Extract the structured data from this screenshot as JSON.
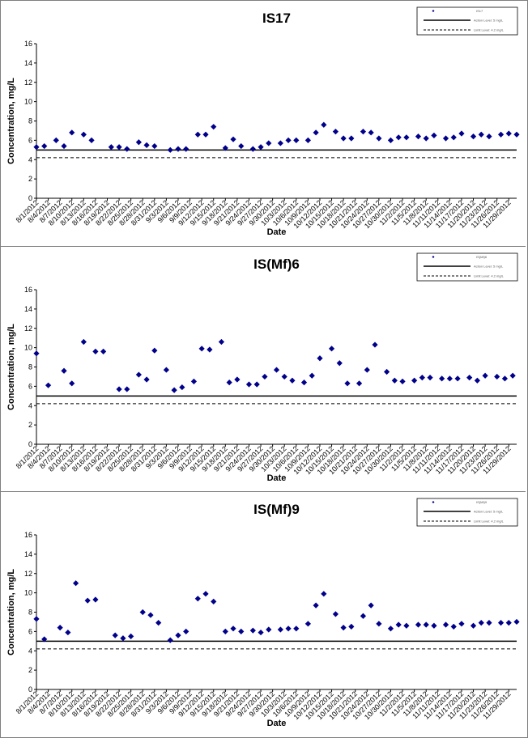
{
  "dates": [
    "8/1/2012",
    "8/4/2012",
    "8/7/2012",
    "8/10/2012",
    "8/13/2012",
    "8/16/2012",
    "8/19/2012",
    "8/22/2012",
    "8/25/2012",
    "8/28/2012",
    "8/31/2012",
    "9/3/2012",
    "9/6/2012",
    "9/9/2012",
    "9/12/2012",
    "9/15/2012",
    "9/18/2012",
    "9/21/2012",
    "9/24/2012",
    "9/27/2012",
    "9/30/2012",
    "10/3/2012",
    "10/6/2012",
    "10/9/2012",
    "10/12/2012",
    "10/15/2012",
    "10/18/2012",
    "10/21/2012",
    "10/24/2012",
    "10/27/2012",
    "10/30/2012",
    "11/2/2012",
    "11/5/2012",
    "11/8/2012",
    "11/11/2012",
    "11/14/2012",
    "11/17/2012",
    "11/20/2012",
    "11/23/2012",
    "11/26/2012",
    "11/29/2012"
  ],
  "legend": {
    "marker_label": "IS17",
    "line1_label": "Action Level: 5 mg/L",
    "line2_label": "Limit Level: 4.2 mg/L"
  },
  "chart_data": [
    {
      "type": "scatter",
      "title": "IS17",
      "xlabel": "Date",
      "ylabel": "Concentration, mg/L",
      "ylim": [
        0,
        16
      ],
      "yticks": [
        0,
        2,
        4,
        6,
        8,
        10,
        12,
        14,
        16
      ],
      "x_axis_type": "date",
      "x_range": [
        "8/1/2012",
        "12/1/2012"
      ],
      "grid": false,
      "legend_position": "top-right",
      "marker": "diamond",
      "marker_color": "#00008b",
      "legend": {
        "marker_label": "IS17",
        "line1_label": "Action Level: 5 mg/L",
        "line2_label": "Limit Level: 4.2 mg/L"
      },
      "reference_lines": [
        {
          "value": 5.0,
          "style": "solid"
        },
        {
          "value": 4.2,
          "style": "dashed"
        }
      ],
      "x": [
        "8/1/2012",
        "8/3/2012",
        "8/6/2012",
        "8/8/2012",
        "8/10/2012",
        "8/13/2012",
        "8/15/2012",
        "8/20/2012",
        "8/22/2012",
        "8/24/2012",
        "8/27/2012",
        "8/29/2012",
        "8/31/2012",
        "9/4/2012",
        "9/6/2012",
        "9/8/2012",
        "9/11/2012",
        "9/13/2012",
        "9/15/2012",
        "9/18/2012",
        "9/20/2012",
        "9/22/2012",
        "9/25/2012",
        "9/27/2012",
        "9/29/2012",
        "10/2/2012",
        "10/4/2012",
        "10/6/2012",
        "10/9/2012",
        "10/11/2012",
        "10/13/2012",
        "10/16/2012",
        "10/18/2012",
        "10/20/2012",
        "10/23/2012",
        "10/25/2012",
        "10/27/2012",
        "10/30/2012",
        "11/1/2012",
        "11/3/2012",
        "11/6/2012",
        "11/8/2012",
        "11/10/2012",
        "11/13/2012",
        "11/15/2012",
        "11/17/2012",
        "11/20/2012",
        "11/22/2012",
        "11/24/2012",
        "11/27/2012",
        "11/29/2012",
        "12/1/2012"
      ],
      "y": [
        5.3,
        5.4,
        6.0,
        5.4,
        6.8,
        6.6,
        6.0,
        5.3,
        5.3,
        5.1,
        5.8,
        5.5,
        5.4,
        5.0,
        5.1,
        5.1,
        6.6,
        6.6,
        7.4,
        5.2,
        6.1,
        5.4,
        5.1,
        5.3,
        5.7,
        5.7,
        6.0,
        6.0,
        6.0,
        6.8,
        7.6,
        6.9,
        6.2,
        6.2,
        6.9,
        6.8,
        6.2,
        6.0,
        6.3,
        6.3,
        6.4,
        6.2,
        6.5,
        6.2,
        6.3,
        6.7,
        6.4,
        6.6,
        6.4,
        6.6,
        6.7,
        6.6
      ]
    },
    {
      "type": "scatter",
      "title": "IS(Mf)6",
      "xlabel": "Date",
      "ylabel": "Concentration, mg/L",
      "ylim": [
        0,
        16
      ],
      "yticks": [
        0,
        2,
        4,
        6,
        8,
        10,
        12,
        14,
        16
      ],
      "x_axis_type": "date",
      "x_range": [
        "8/1/2012",
        "12/1/2012"
      ],
      "grid": false,
      "legend_position": "top-right",
      "marker": "diamond",
      "marker_color": "#00008b",
      "legend": {
        "marker_label": "IS(Mf)6",
        "line1_label": "Action Level: 5 mg/L",
        "line2_label": "Limit Level: 4.2 mg/L"
      },
      "reference_lines": [
        {
          "value": 5.0,
          "style": "solid"
        },
        {
          "value": 4.2,
          "style": "dashed"
        }
      ],
      "x": [
        "8/1/2012",
        "8/4/2012",
        "8/8/2012",
        "8/10/2012",
        "8/13/2012",
        "8/16/2012",
        "8/18/2012",
        "8/22/2012",
        "8/24/2012",
        "8/27/2012",
        "8/29/2012",
        "8/31/2012",
        "9/3/2012",
        "9/5/2012",
        "9/7/2012",
        "9/10/2012",
        "9/12/2012",
        "9/14/2012",
        "9/17/2012",
        "9/19/2012",
        "9/21/2012",
        "9/24/2012",
        "9/26/2012",
        "9/28/2012",
        "10/1/2012",
        "10/3/2012",
        "10/5/2012",
        "10/8/2012",
        "10/10/2012",
        "10/12/2012",
        "10/15/2012",
        "10/17/2012",
        "10/19/2012",
        "10/22/2012",
        "10/24/2012",
        "10/26/2012",
        "10/29/2012",
        "10/31/2012",
        "11/2/2012",
        "11/5/2012",
        "11/7/2012",
        "11/9/2012",
        "11/12/2012",
        "11/14/2012",
        "11/16/2012",
        "11/19/2012",
        "11/21/2012",
        "11/23/2012",
        "11/26/2012",
        "11/28/2012",
        "11/30/2012"
      ],
      "y": [
        9.4,
        6.1,
        7.6,
        6.3,
        10.6,
        9.6,
        9.6,
        5.7,
        5.7,
        7.2,
        6.7,
        9.7,
        7.7,
        5.6,
        5.9,
        6.5,
        9.9,
        9.8,
        10.6,
        6.4,
        6.7,
        6.2,
        6.2,
        7.0,
        7.7,
        7.0,
        6.6,
        6.4,
        7.1,
        8.9,
        9.9,
        8.4,
        6.3,
        6.3,
        7.7,
        10.3,
        7.5,
        6.6,
        6.5,
        6.6,
        6.9,
        6.9,
        6.8,
        6.8,
        6.8,
        6.9,
        6.6,
        7.1,
        7.0,
        6.8,
        7.1
      ]
    },
    {
      "type": "scatter",
      "title": "IS(Mf)9",
      "xlabel": "Date",
      "ylabel": "Concentration, mg/L",
      "ylim": [
        0,
        16
      ],
      "yticks": [
        0,
        2,
        4,
        6,
        8,
        10,
        12,
        14,
        16
      ],
      "x_axis_type": "date",
      "x_range": [
        "8/1/2012",
        "12/1/2012"
      ],
      "grid": false,
      "legend_position": "top-right",
      "marker": "diamond",
      "marker_color": "#00008b",
      "legend": {
        "marker_label": "IS(Mf)9",
        "line1_label": "Action Level: 5 mg/L",
        "line2_label": "Limit Level: 4.2 mg/L"
      },
      "reference_lines": [
        {
          "value": 5.0,
          "style": "solid"
        },
        {
          "value": 4.2,
          "style": "dashed"
        }
      ],
      "x": [
        "8/1/2012",
        "8/3/2012",
        "8/7/2012",
        "8/9/2012",
        "8/11/2012",
        "8/14/2012",
        "8/16/2012",
        "8/21/2012",
        "8/23/2012",
        "8/25/2012",
        "8/28/2012",
        "8/30/2012",
        "9/1/2012",
        "9/4/2012",
        "9/6/2012",
        "9/8/2012",
        "9/11/2012",
        "9/13/2012",
        "9/15/2012",
        "9/18/2012",
        "9/20/2012",
        "9/22/2012",
        "9/25/2012",
        "9/27/2012",
        "9/29/2012",
        "10/2/2012",
        "10/4/2012",
        "10/6/2012",
        "10/9/2012",
        "10/11/2012",
        "10/13/2012",
        "10/16/2012",
        "10/18/2012",
        "10/20/2012",
        "10/23/2012",
        "10/25/2012",
        "10/27/2012",
        "10/30/2012",
        "11/1/2012",
        "11/3/2012",
        "11/6/2012",
        "11/8/2012",
        "11/10/2012",
        "11/13/2012",
        "11/15/2012",
        "11/17/2012",
        "11/20/2012",
        "11/22/2012",
        "11/24/2012",
        "11/27/2012",
        "11/29/2012",
        "12/1/2012"
      ],
      "y": [
        7.3,
        5.2,
        6.4,
        5.9,
        11.0,
        9.2,
        9.3,
        5.6,
        5.3,
        5.5,
        8.0,
        7.7,
        6.9,
        5.1,
        5.6,
        6.0,
        9.4,
        9.9,
        9.1,
        6.0,
        6.3,
        6.0,
        6.1,
        5.9,
        6.2,
        6.2,
        6.3,
        6.3,
        6.8,
        8.7,
        9.9,
        7.8,
        6.4,
        6.5,
        7.6,
        8.7,
        6.8,
        6.3,
        6.7,
        6.6,
        6.7,
        6.7,
        6.6,
        6.7,
        6.5,
        6.8,
        6.6,
        6.9,
        6.9,
        6.9,
        6.9,
        7.0
      ]
    }
  ]
}
